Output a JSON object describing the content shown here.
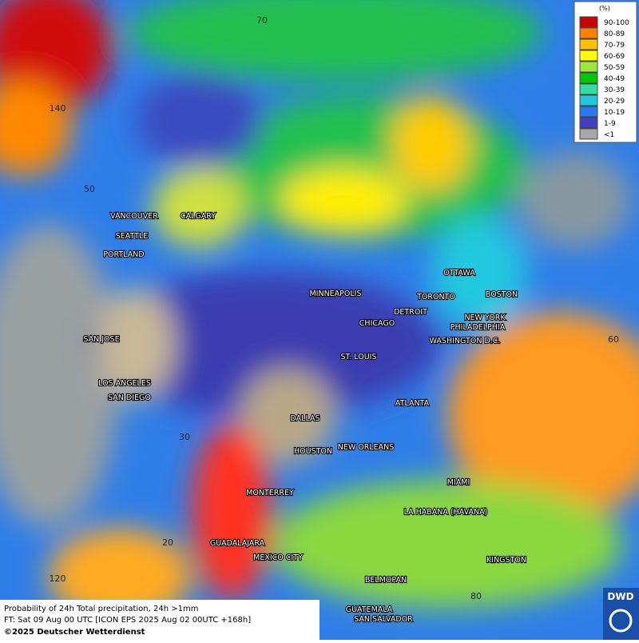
{
  "map": {
    "grid_labels": [
      "70",
      "140",
      "50",
      "30",
      "20",
      "120",
      "60",
      "80"
    ],
    "cities": [
      "VANCOUVER",
      "CALGARY",
      "SEATTLE",
      "PORTLAND",
      "MINNEAPOLIS",
      "OTTAWA",
      "TORONTO",
      "BOSTON",
      "DETROIT",
      "NEW YORK",
      "CHICAGO",
      "PHILADELPHIA",
      "SAN JOSE",
      "WASHINGTON D.C.",
      "ST. LOUIS",
      "LOS ANGELES",
      "SAN DIEGO",
      "ATLANTA",
      "DALLAS",
      "NEW ORLEANS",
      "HOUSTON",
      "MIAMI",
      "MONTERREY",
      "LA HABANA (HAVANA)",
      "GUADALAJARA",
      "MEXICO CITY",
      "KINGSTON",
      "BELMOPAN",
      "GUATEMALA",
      "SAN SALVADOR"
    ]
  },
  "legend": {
    "title": "(%)",
    "items": [
      {
        "label": "90-100",
        "color": "#c80000"
      },
      {
        "label": "80-89",
        "color": "#ff8000"
      },
      {
        "label": "70-79",
        "color": "#ffc000"
      },
      {
        "label": "60-69",
        "color": "#ffff00"
      },
      {
        "label": "50-59",
        "color": "#a0e640"
      },
      {
        "label": "40-49",
        "color": "#00c800"
      },
      {
        "label": "30-39",
        "color": "#30dca0"
      },
      {
        "label": "20-29",
        "color": "#20c8e0"
      },
      {
        "label": "10-19",
        "color": "#2878f0"
      },
      {
        "label": "1-9",
        "color": "#4040c0"
      },
      {
        "label": "<1",
        "color": "#a8a8a8"
      }
    ]
  },
  "footer": {
    "lines": [
      "Probability of 24h Total precipitation, 24h >1mm",
      "FT: Sat 09 Aug 00 UTC [ICON EPS 2025 Aug 02 00UTC +168h]",
      "©2025 Deutscher Wetterdienst"
    ],
    "logo": "DWD"
  }
}
